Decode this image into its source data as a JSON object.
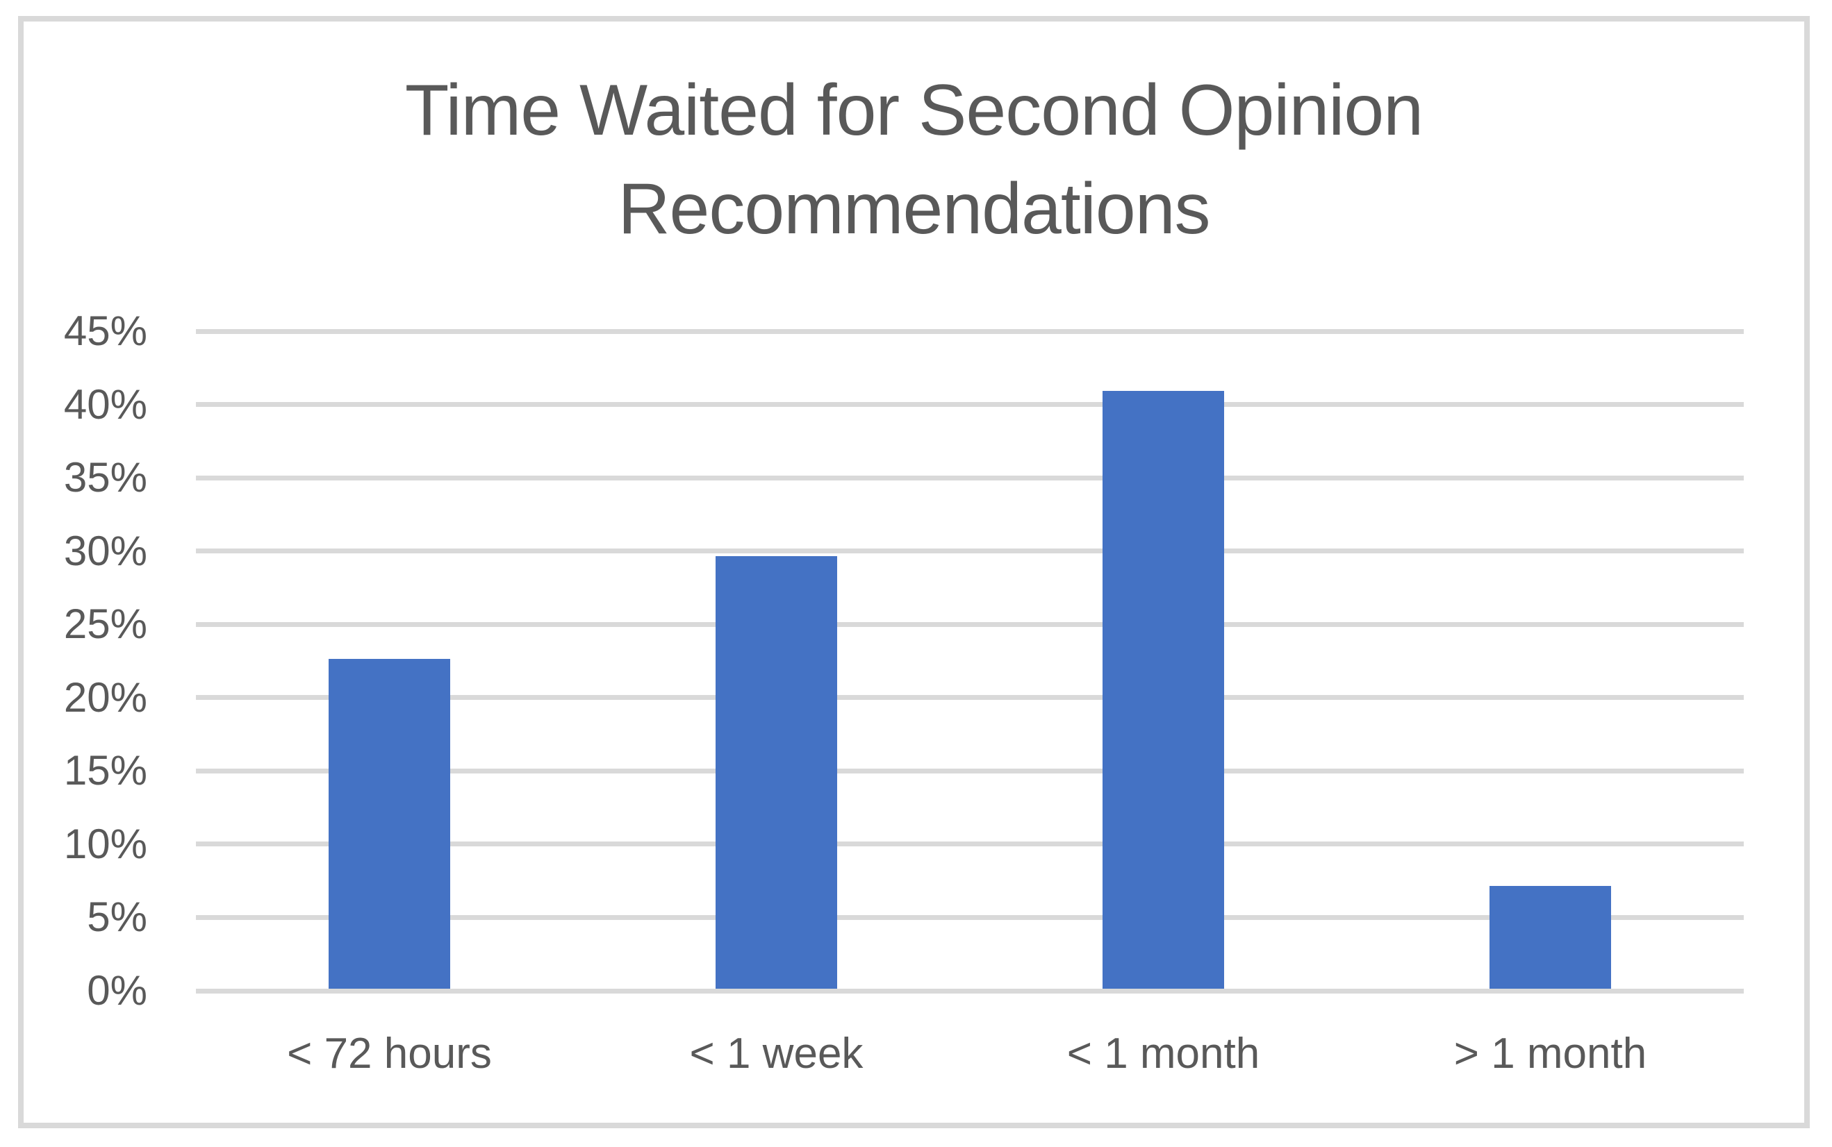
{
  "chart_data": {
    "type": "bar",
    "title": "Time Waited for Second Opinion Recommendations",
    "title_lines": [
      "Time Waited for Second Opinion",
      "Recommendations"
    ],
    "categories": [
      "< 72 hours",
      "< 1 week",
      "< 1 month",
      "> 1 month"
    ],
    "values": [
      22.5,
      29.5,
      40.8,
      7
    ],
    "value_unit": "%",
    "xlabel": "",
    "ylabel": "",
    "ylim": [
      0,
      45
    ],
    "ytick_step": 5,
    "ytick_labels": [
      "0%",
      "5%",
      "10%",
      "15%",
      "20%",
      "25%",
      "30%",
      "35%",
      "40%",
      "45%"
    ],
    "grid": "horizontal-only",
    "legend": "none",
    "colors": {
      "bar": "#4472C4",
      "gridline": "#D9D9D9",
      "frame_border": "#D9D9D9",
      "text": "#595959",
      "background": "#FFFFFF"
    }
  }
}
